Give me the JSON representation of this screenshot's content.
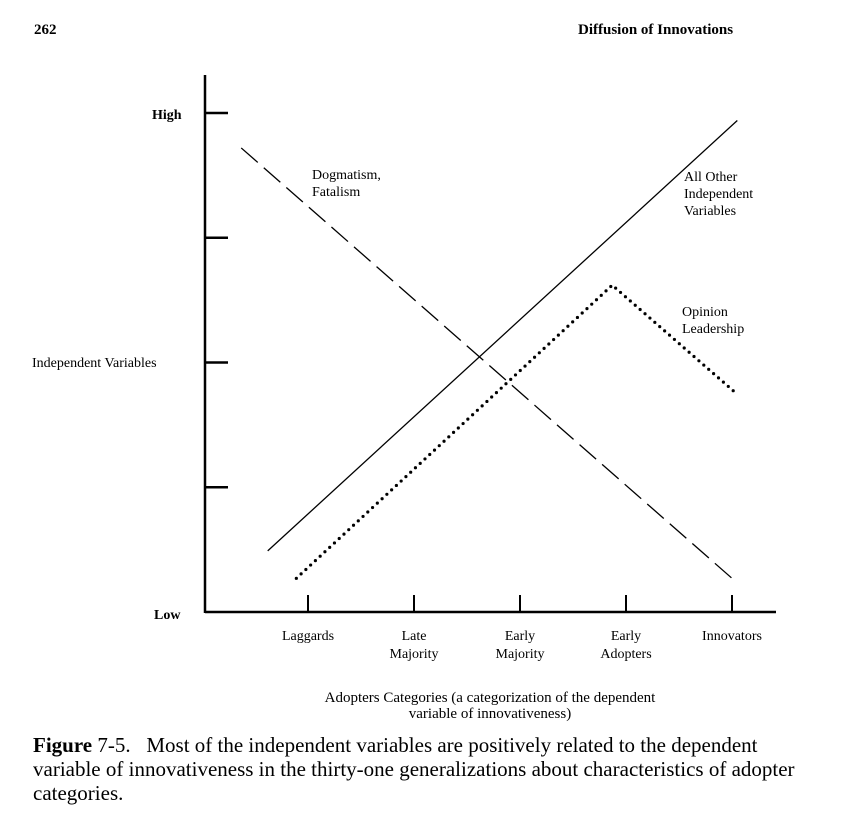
{
  "header": {
    "page_number": "262",
    "running_title": "Diffusion of Innovations"
  },
  "chart_data": {
    "type": "line",
    "title": "",
    "ylabel": "Independent Variables",
    "y_tick_labels": {
      "high": "High",
      "low": "Low"
    },
    "ylim": [
      0,
      4
    ],
    "xlim": [
      0,
      5.5
    ],
    "categories": [
      "Laggards",
      "Late Majority",
      "Early Majority",
      "Early Adopters",
      "Innovators"
    ],
    "category_lines": [
      [
        "Laggards"
      ],
      [
        "Late",
        "Majority"
      ],
      [
        "Early",
        "Majority"
      ],
      [
        "Early",
        "Adopters"
      ],
      [
        "Innovators"
      ]
    ],
    "xlabel": [
      "Adopters Categories (a categorization of the dependent",
      "variable of innovativeness)"
    ],
    "series": [
      {
        "name": "Dogmatism, Fatalism",
        "label_lines": [
          "Dogmatism,",
          "Fatalism"
        ],
        "style": "dashed",
        "points": [
          [
            0.37,
            3.72
          ],
          [
            5.0,
            0.27
          ]
        ]
      },
      {
        "name": "All Other Independent Variables",
        "label_lines": [
          "All Other",
          "Independent",
          "Variables"
        ],
        "style": "solid",
        "points": [
          [
            0.62,
            0.49
          ],
          [
            5.05,
            3.94
          ]
        ]
      },
      {
        "name": "Opinion Leadership",
        "label_lines": [
          "Opinion",
          "Leadership"
        ],
        "style": "dotted",
        "points": [
          [
            0.89,
            0.27
          ],
          [
            3.87,
            2.62
          ],
          [
            5.03,
            1.76
          ]
        ]
      }
    ]
  },
  "caption": {
    "label": "Figure",
    "number": "7-5.",
    "text": "Most of the independent variables are positively related to the dependent variable of innovativeness in the thirty-one generalizations about characteristics of adopter categories."
  }
}
